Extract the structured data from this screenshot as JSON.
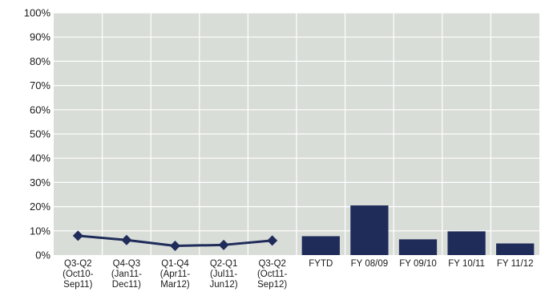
{
  "chart_data": {
    "type": "bar",
    "title": "",
    "xlabel": "",
    "ylabel": "",
    "ylim": [
      0,
      100
    ],
    "y_ticks": [
      "0%",
      "10%",
      "20%",
      "30%",
      "40%",
      "50%",
      "60%",
      "70%",
      "80%",
      "90%",
      "100%"
    ],
    "grid": true,
    "colors": {
      "plot_bg": "#d9ddd8",
      "grid": "#ffffff",
      "series": "#1f2c5a"
    },
    "categories": [
      [
        "Q3-Q2",
        "(Oct10-",
        "Sep11)"
      ],
      [
        "Q4-Q3",
        "(Jan11-",
        "Dec11)"
      ],
      [
        "Q1-Q4",
        "(Apr11-",
        "Mar12)"
      ],
      [
        "Q2-Q1",
        "(Jul11-",
        "Jun12)"
      ],
      [
        "Q3-Q2",
        "(Oct11-",
        "Sep12)"
      ],
      [
        "FYTD"
      ],
      [
        "FY 08/09"
      ],
      [
        "FY 09/10"
      ],
      [
        "FY 10/11"
      ],
      [
        "FY 11/12"
      ]
    ],
    "line_series": {
      "type": "line",
      "marker": "diamond",
      "values": [
        8,
        6.2,
        3.8,
        4.2,
        6
      ]
    },
    "bar_series": {
      "type": "bar",
      "values": [
        7.8,
        20.5,
        6.5,
        9.8,
        4.8
      ]
    }
  }
}
